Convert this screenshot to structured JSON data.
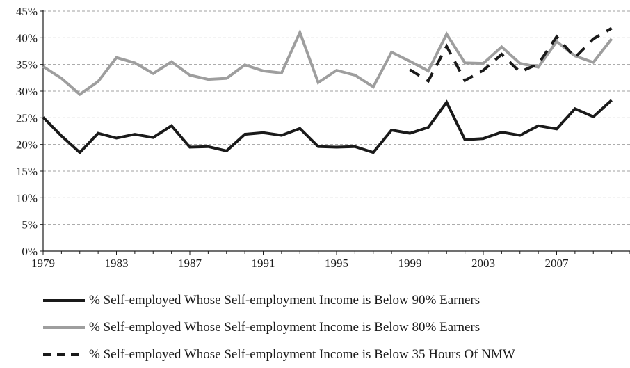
{
  "chart_data": {
    "type": "line",
    "title": "",
    "xlabel": "",
    "ylabel": "",
    "ylim": [
      0,
      45
    ],
    "xlim": [
      1979,
      2011
    ],
    "y_ticks": [
      0,
      5,
      10,
      15,
      20,
      25,
      30,
      35,
      40,
      45
    ],
    "y_tick_labels": [
      "0%",
      "5%",
      "10%",
      "15%",
      "20%",
      "25%",
      "30%",
      "35%",
      "40%",
      "45%"
    ],
    "x_ticks": [
      1979,
      1983,
      1987,
      1991,
      1995,
      1999,
      2003,
      2007
    ],
    "x_tick_labels": [
      "1979",
      "1983",
      "1987",
      "1991",
      "1995",
      "1999",
      "2003",
      "2007"
    ],
    "grid": "horizontal dashed",
    "legend_position": "bottom",
    "series": [
      {
        "name": "% Self-employed Whose Self-employment Income is Below 90% Earners",
        "color": "#1a1a1a",
        "style": "solid",
        "x": [
          1979,
          1980,
          1981,
          1982,
          1983,
          1984,
          1985,
          1986,
          1987,
          1988,
          1989,
          1990,
          1991,
          1992,
          1993,
          1994,
          1995,
          1996,
          1997,
          1998,
          1999,
          2000,
          2001,
          2002,
          2003,
          2004,
          2005,
          2006,
          2007,
          2008,
          2009,
          2010
        ],
        "values": [
          25.1,
          21.6,
          18.5,
          22.1,
          21.2,
          21.9,
          21.3,
          23.5,
          19.5,
          19.6,
          18.8,
          21.9,
          22.2,
          21.7,
          23.0,
          19.6,
          19.5,
          19.6,
          18.5,
          22.7,
          22.1,
          23.2,
          27.9,
          20.9,
          21.1,
          22.3,
          21.7,
          23.5,
          22.9,
          26.7,
          25.2,
          28.3
        ]
      },
      {
        "name": "% Self-employed Whose Self-employment Income is Below 80% Earners",
        "color": "#9e9e9e",
        "style": "solid",
        "x": [
          1979,
          1980,
          1981,
          1982,
          1983,
          1984,
          1985,
          1986,
          1987,
          1988,
          1989,
          1990,
          1991,
          1992,
          1993,
          1994,
          1995,
          1996,
          1997,
          1998,
          1999,
          2000,
          2001,
          2002,
          2003,
          2004,
          2005,
          2006,
          2007,
          2008,
          2009,
          2010
        ],
        "values": [
          34.6,
          32.4,
          29.4,
          31.8,
          36.3,
          35.3,
          33.3,
          35.5,
          33.0,
          32.2,
          32.4,
          34.9,
          33.8,
          33.4,
          41.0,
          31.6,
          33.9,
          33.0,
          30.8,
          37.3,
          35.6,
          33.8,
          40.7,
          35.3,
          35.2,
          38.3,
          35.2,
          34.5,
          39.3,
          36.6,
          35.4,
          39.8
        ]
      },
      {
        "name": "% Self-employed Whose Self-employment Income is Below 35 Hours Of NMW",
        "color": "#1a1a1a",
        "style": "dashed",
        "x": [
          1999,
          2000,
          2001,
          2002,
          2003,
          2004,
          2005,
          2006,
          2007,
          2008,
          2009,
          2010
        ],
        "values": [
          34.0,
          31.9,
          38.4,
          32.0,
          33.9,
          36.9,
          33.6,
          35.1,
          40.2,
          36.3,
          39.8,
          41.8
        ]
      }
    ]
  }
}
